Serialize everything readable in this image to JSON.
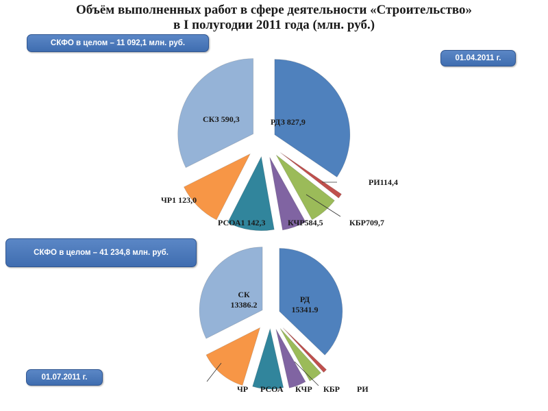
{
  "title": {
    "line1": "Объём выполненных работ в сфере деятельности «Строительство»",
    "line2": "в I полугодии 2011 года  (млн. руб.)"
  },
  "badges": {
    "total_q1": "СКФО в целом – 11 092,1 млн. руб.",
    "date_q1": "01.04.2011 г.",
    "total_h1": "СКФО в целом – 41 234,8 млн. руб.",
    "date_h1": "01.07.2011 г."
  },
  "colors": {
    "badge": "#4a78bb",
    "RD": "#4f81bd",
    "RI": "#c0504d",
    "KBR": "#9bbb59",
    "KCHR": "#8064a2",
    "RSOA": "#31859c",
    "CHR": "#f79646",
    "SK": "#95b3d7"
  },
  "chart_data": [
    {
      "type": "pie",
      "title": "01.04.2011 г.",
      "slices": [
        {
          "id": "RD",
          "label": "РДЗ 827,9",
          "value": 3827.9
        },
        {
          "id": "RI",
          "label": "РИ114,4",
          "value": 114.4
        },
        {
          "id": "KBR",
          "label": "КБР709,7",
          "value": 709.7
        },
        {
          "id": "KCHR",
          "label": "КЧР584,5",
          "value": 584.5
        },
        {
          "id": "RSOA",
          "label": "РСОА1 142,3",
          "value": 1142.3
        },
        {
          "id": "CHR",
          "label": "ЧР1 123,0",
          "value": 1123.0
        },
        {
          "id": "SK",
          "label": "СКЗ 590,3",
          "value": 3590.3
        }
      ]
    },
    {
      "type": "pie",
      "title": "01.07.2011 г.",
      "slices": [
        {
          "id": "RD",
          "label": "РД\n15341.9",
          "value": 15341.9
        },
        {
          "id": "RI",
          "label": "РИ",
          "value": 420
        },
        {
          "id": "KBR",
          "label": "КБР",
          "value": 1500
        },
        {
          "id": "KCHR",
          "label": "КЧР",
          "value": 1900
        },
        {
          "id": "RSOA",
          "label": "РСОА",
          "value": 3400
        },
        {
          "id": "CHR",
          "label": "ЧР",
          "value": 5300
        },
        {
          "id": "SK",
          "label": "СК\n13386.2",
          "value": 13386.2
        }
      ]
    }
  ]
}
